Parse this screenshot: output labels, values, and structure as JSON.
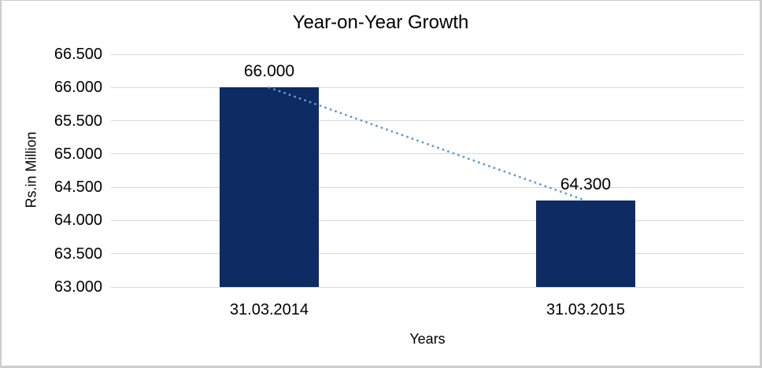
{
  "frame": {
    "background": "#ffffff",
    "border_color": "#cdcdcd"
  },
  "chart_data": {
    "type": "bar",
    "title": "Year-on-Year Growth",
    "xlabel": "Years",
    "ylabel": "Rs.in Million",
    "categories": [
      "31.03.2014",
      "31.03.2015"
    ],
    "values": [
      66.0,
      64.3
    ],
    "data_labels": [
      "66.000",
      "64.300"
    ],
    "ylim": [
      63.0,
      66.5
    ],
    "ytick_step": 0.5,
    "ytick_labels": [
      "66.500",
      "66.000",
      "65.500",
      "65.000",
      "64.500",
      "64.000",
      "63.500",
      "63.000"
    ],
    "grid": true,
    "legend": "none",
    "bar_color": "#0e2b63",
    "gridline_color": "#d9d9d9",
    "text_color": "#000000",
    "trendline": {
      "type": "linear",
      "style": "dotted",
      "color": "#5b9bd5",
      "from_category": "31.03.2014",
      "to_category": "31.03.2015"
    }
  }
}
